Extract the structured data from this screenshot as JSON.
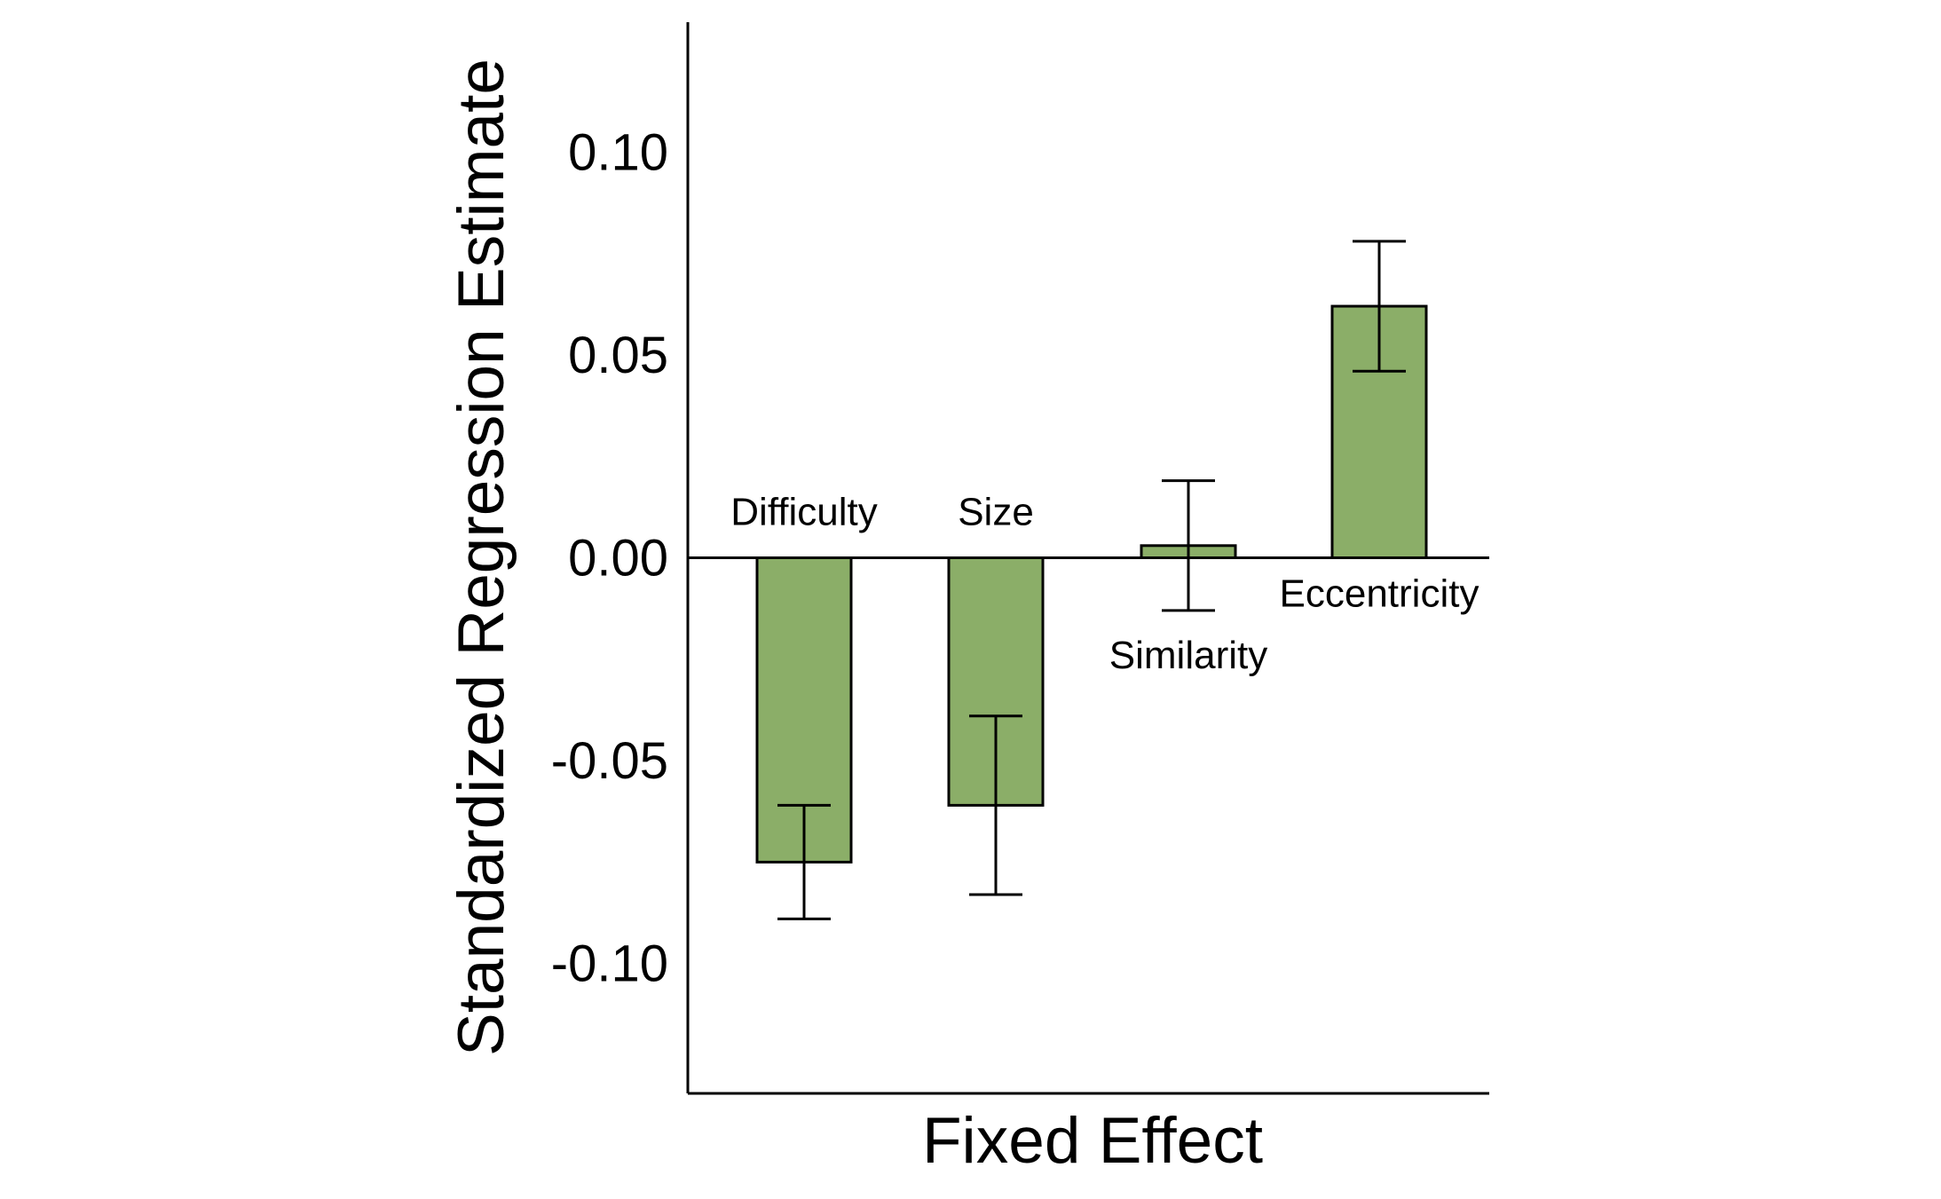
{
  "chart_data": {
    "type": "bar",
    "categories": [
      "Difficulty",
      "Size",
      "Similarity",
      "Eccentricity"
    ],
    "values": [
      -0.075,
      -0.061,
      0.003,
      0.062
    ],
    "error_bars": {
      "lower": [
        -0.089,
        -0.083,
        -0.013,
        0.046
      ],
      "upper": [
        -0.061,
        -0.039,
        0.019,
        0.078
      ]
    },
    "xlabel": "Fixed Effect",
    "ylabel": "Standardized Regression Estimate",
    "ylim": [
      -0.132,
      0.132
    ],
    "yticks": [
      -0.1,
      -0.05,
      0.0,
      0.05,
      0.1
    ],
    "ytick_labels": [
      "-0.10",
      "-0.05",
      "0.00",
      "0.05",
      "0.10"
    ],
    "grid": false,
    "legend": "none",
    "bar_color": "#8bae68",
    "bar_edge_color": "#000000"
  }
}
